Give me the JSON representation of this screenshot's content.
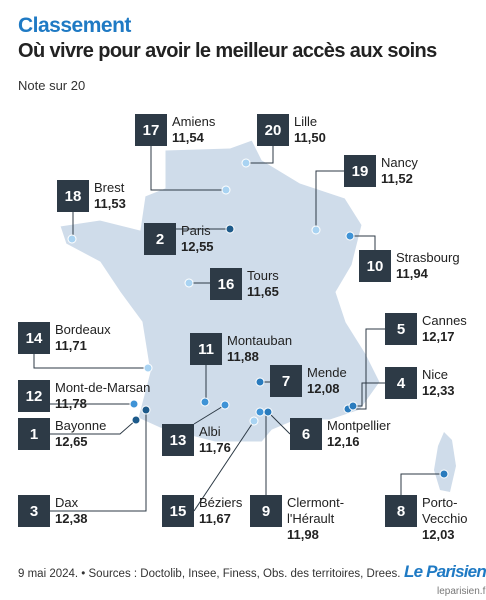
{
  "header": {
    "kicker": "Classement",
    "title": "Où vivre pour avoir le meilleur accès aux soins",
    "subtitle": "Note sur 20"
  },
  "cities": [
    {
      "rank": 17,
      "name": "Amiens",
      "score": "11,54",
      "dot_color": "#a9d3f2"
    },
    {
      "rank": 20,
      "name": "Lille",
      "score": "11,50",
      "dot_color": "#a9d3f2"
    },
    {
      "rank": 18,
      "name": "Brest",
      "score": "11,53",
      "dot_color": "#a9d3f2"
    },
    {
      "rank": 19,
      "name": "Nancy",
      "score": "11,52",
      "dot_color": "#a9d3f2"
    },
    {
      "rank": 2,
      "name": "Paris",
      "score": "12,55",
      "dot_color": "#1d5a8a"
    },
    {
      "rank": 10,
      "name": "Strasbourg",
      "score": "11,94",
      "dot_color": "#3f93d6"
    },
    {
      "rank": 16,
      "name": "Tours",
      "score": "11,65",
      "dot_color": "#a9d3f2"
    },
    {
      "rank": 14,
      "name": "Bordeaux",
      "score": "11,71",
      "dot_color": "#a9d3f2"
    },
    {
      "rank": 5,
      "name": "Cannes",
      "score": "12,17",
      "dot_color": "#2a7bbd"
    },
    {
      "rank": 11,
      "name": "Montauban",
      "score": "11,88",
      "dot_color": "#3f93d6"
    },
    {
      "rank": 7,
      "name": "Mende",
      "score": "12,08",
      "dot_color": "#2a7bbd"
    },
    {
      "rank": 4,
      "name": "Nice",
      "score": "12,33",
      "dot_color": "#2a7bbd"
    },
    {
      "rank": 12,
      "name": "Mont-de-Marsan",
      "score": "11,78",
      "dot_color": "#3f93d6"
    },
    {
      "rank": 1,
      "name": "Bayonne",
      "score": "12,65",
      "dot_color": "#1d5a8a"
    },
    {
      "rank": 13,
      "name": "Albi",
      "score": "11,76",
      "dot_color": "#3f93d6"
    },
    {
      "rank": 6,
      "name": "Montpellier",
      "score": "12,16",
      "dot_color": "#2a7bbd"
    },
    {
      "rank": 3,
      "name": "Dax",
      "score": "12,38",
      "dot_color": "#1d5a8a"
    },
    {
      "rank": 15,
      "name": "Béziers",
      "score": "11,67",
      "dot_color": "#a9d3f2"
    },
    {
      "rank": 9,
      "name": "Clermont-l'Hérault",
      "score": "11,98",
      "dot_color": "#3f93d6"
    },
    {
      "rank": 8,
      "name": "Porto-Vecchio",
      "score": "12,03",
      "dot_color": "#2a7bbd"
    }
  ],
  "footer": {
    "source": "9 mai 2024. • Sources : Doctolib, Insee, Finess, Obs. des territoires, Drees.",
    "logo": "Le Parisien",
    "watermark": "leparisien.fr"
  }
}
